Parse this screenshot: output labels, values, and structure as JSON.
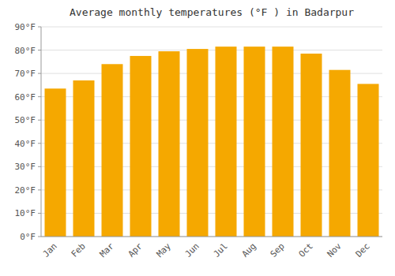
{
  "chart_data": {
    "type": "bar",
    "title": "Average monthly temperatures (°F ) in Badarpur",
    "categories": [
      "Jan",
      "Feb",
      "Mar",
      "Apr",
      "May",
      "Jun",
      "Jul",
      "Aug",
      "Sep",
      "Oct",
      "Nov",
      "Dec"
    ],
    "values": [
      63.5,
      67.0,
      74.0,
      77.5,
      79.5,
      80.5,
      81.5,
      81.5,
      81.5,
      78.5,
      71.5,
      65.5
    ],
    "color": "#F5A800",
    "ylim": [
      0,
      90
    ],
    "yticks": [
      {
        "value": 0,
        "label": "0°F"
      },
      {
        "value": 10,
        "label": "10°F"
      },
      {
        "value": 20,
        "label": "20°F"
      },
      {
        "value": 30,
        "label": "30°F"
      },
      {
        "value": 40,
        "label": "40°F"
      },
      {
        "value": 50,
        "label": "50°F"
      },
      {
        "value": 60,
        "label": "60°F"
      },
      {
        "value": 70,
        "label": "70°F"
      },
      {
        "value": 80,
        "label": "80°F"
      },
      {
        "value": 90,
        "label": "90°F"
      }
    ],
    "grid": true
  }
}
